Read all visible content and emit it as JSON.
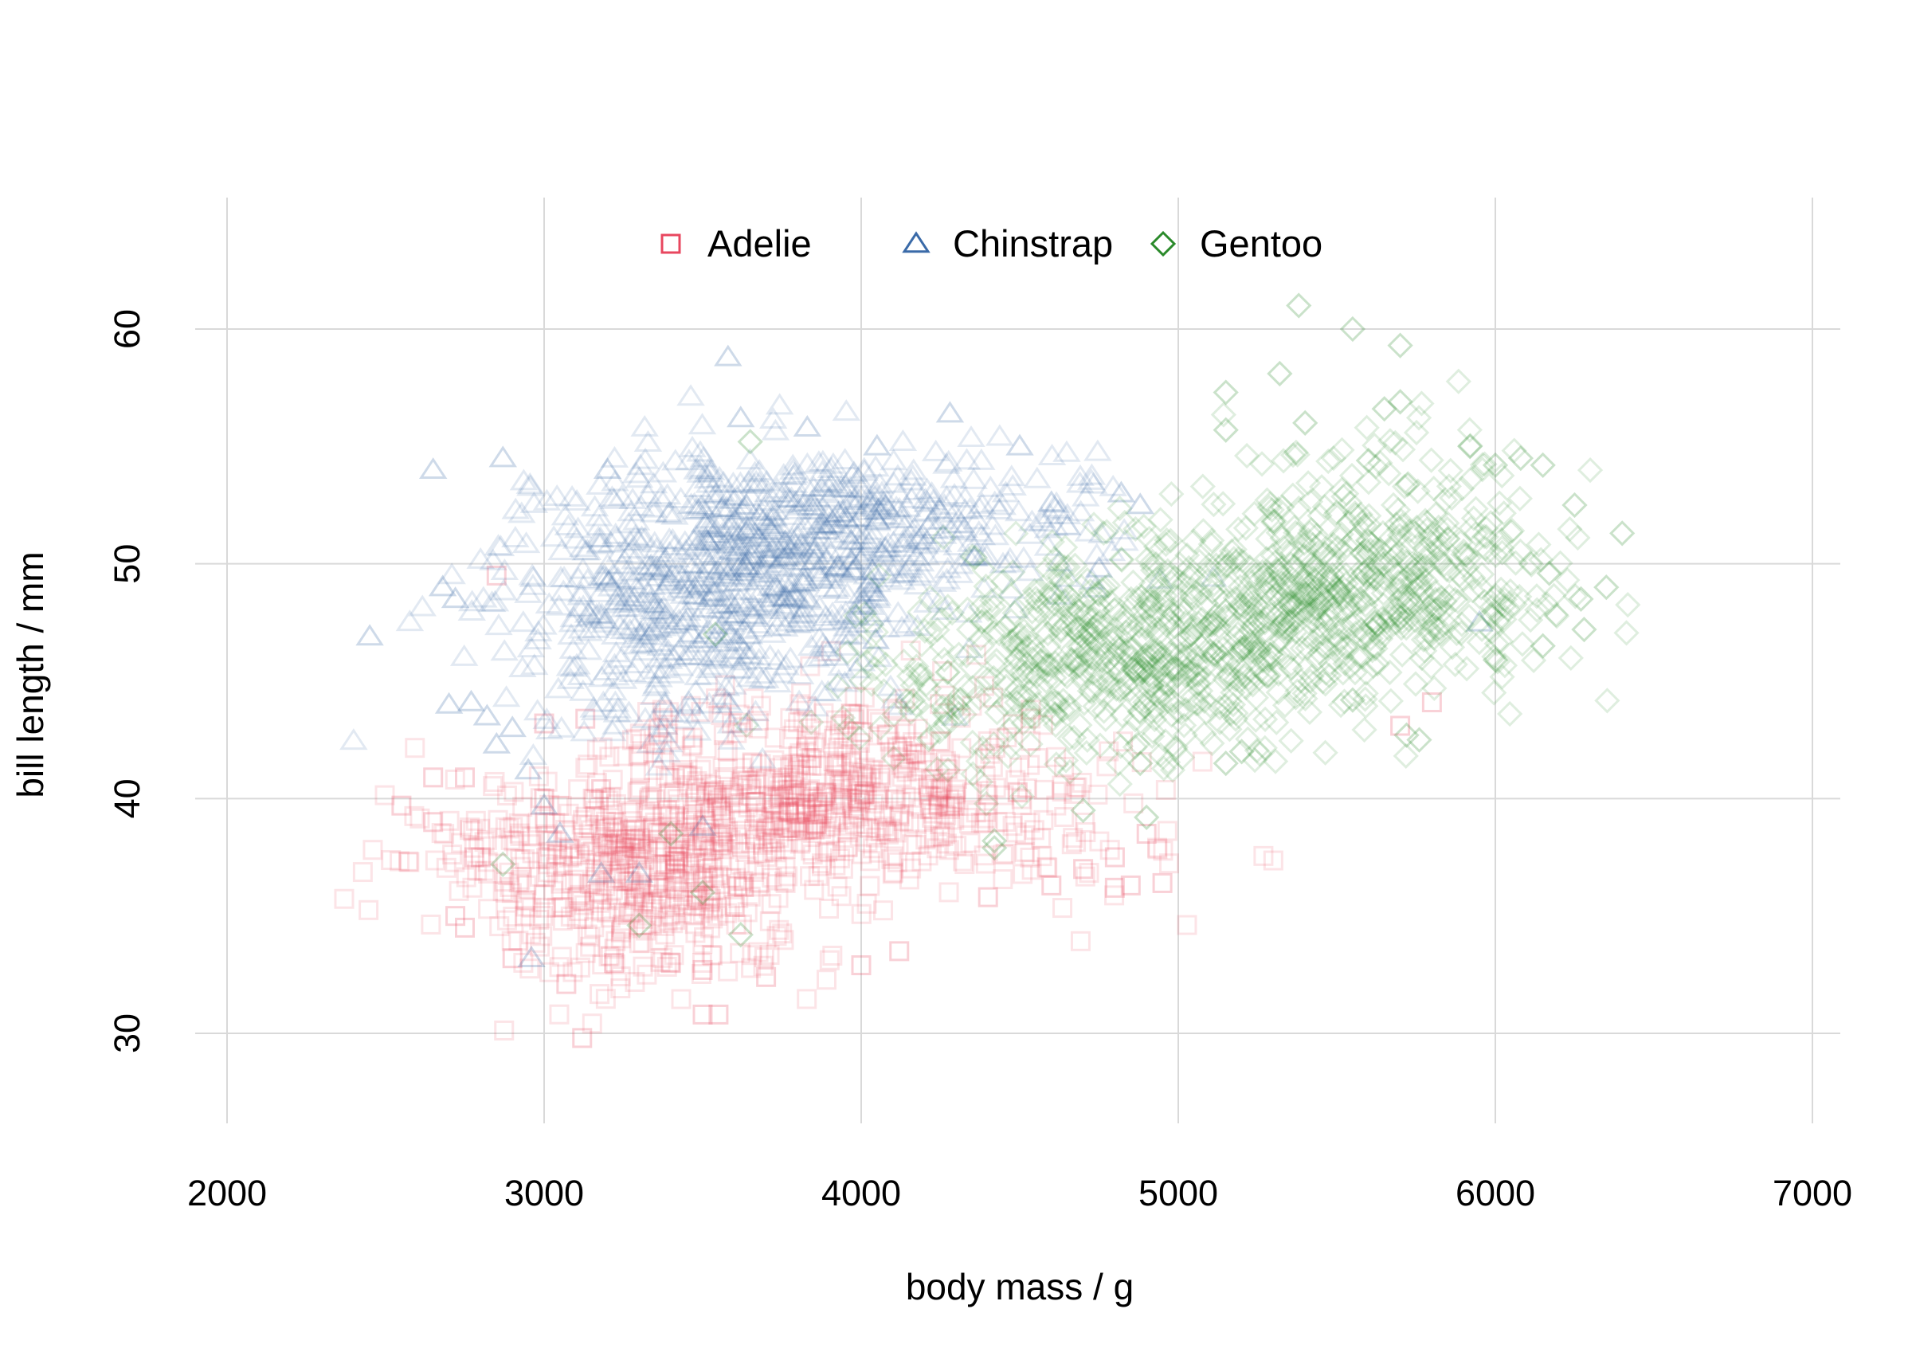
{
  "chart_data": {
    "type": "scatter",
    "title": "",
    "xlabel": "body mass / g",
    "ylabel": "bill length / mm",
    "xlim": [
      2000,
      7000
    ],
    "ylim": [
      26,
      64
    ],
    "xticks": [
      2000,
      3000,
      4000,
      5000,
      6000,
      7000
    ],
    "yticks": [
      30,
      40,
      50,
      60
    ],
    "grid": true,
    "legend_position": "top-center",
    "point_alpha": 0.15,
    "series": [
      {
        "name": "Adelie",
        "marker": "square",
        "color": "#e8475f",
        "centers": [
          [
            3300,
            37.5,
            1.0
          ],
          [
            3500,
            38.0,
            1.0
          ],
          [
            3800,
            39.5,
            0.95
          ],
          [
            4000,
            40.5,
            0.8
          ],
          [
            3200,
            36.0,
            0.75
          ],
          [
            3600,
            41.0,
            0.75
          ],
          [
            4300,
            40.0,
            0.6
          ],
          [
            2900,
            38.0,
            0.45
          ],
          [
            4600,
            38.5,
            0.35
          ],
          [
            3400,
            34.0,
            0.45
          ],
          [
            4100,
            42.5,
            0.4
          ]
        ],
        "spread": [
          240,
          1.7
        ],
        "points": [
          [
            2550,
            39.7
          ],
          [
            2650,
            40.9
          ],
          [
            2650,
            39.0
          ],
          [
            2750,
            40.9
          ],
          [
            2780,
            37.5
          ],
          [
            2800,
            37.5
          ],
          [
            2720,
            35.0
          ],
          [
            2750,
            34.5
          ],
          [
            2900,
            33.2
          ],
          [
            3000,
            40.0
          ],
          [
            3000,
            43.2
          ],
          [
            3070,
            32.1
          ],
          [
            3120,
            29.8
          ],
          [
            3500,
            30.8
          ],
          [
            3550,
            30.8
          ],
          [
            3700,
            32.4
          ],
          [
            4000,
            32.9
          ],
          [
            4120,
            33.5
          ],
          [
            3220,
            33.0
          ],
          [
            4400,
            35.8
          ],
          [
            4600,
            36.3
          ],
          [
            4800,
            36.2
          ],
          [
            4850,
            36.3
          ],
          [
            4950,
            36.4
          ],
          [
            4900,
            38.5
          ],
          [
            4700,
            37.0
          ],
          [
            4800,
            37.5
          ],
          [
            5700,
            43.1
          ],
          [
            5800,
            44.1
          ],
          [
            2850,
            49.5
          ],
          [
            3130,
            43.4
          ],
          [
            3180,
            40.4
          ],
          [
            3400,
            33.0
          ],
          [
            3500,
            32.7
          ]
        ]
      },
      {
        "name": "Chinstrap",
        "marker": "triangle",
        "color": "#3a6aa8",
        "centers": [
          [
            3550,
            49.8,
            1.0
          ],
          [
            3800,
            50.5,
            1.0
          ],
          [
            3300,
            47.5,
            0.85
          ],
          [
            4000,
            51.0,
            0.85
          ],
          [
            3600,
            52.5,
            0.75
          ],
          [
            4250,
            51.5,
            0.55
          ],
          [
            3400,
            45.0,
            0.55
          ],
          [
            4500,
            51.5,
            0.3
          ],
          [
            3100,
            50.5,
            0.45
          ],
          [
            3800,
            47.5,
            0.65
          ]
        ],
        "spread": [
          230,
          1.8
        ],
        "points": [
          [
            2450,
            46.9
          ],
          [
            2650,
            54.0
          ],
          [
            2680,
            49.0
          ],
          [
            2720,
            48.5
          ],
          [
            2700,
            44.0
          ],
          [
            2770,
            44.1
          ],
          [
            2820,
            43.5
          ],
          [
            2850,
            42.3
          ],
          [
            2870,
            54.5
          ],
          [
            2900,
            43.0
          ],
          [
            2950,
            41.2
          ],
          [
            2960,
            33.2
          ],
          [
            3580,
            58.8
          ],
          [
            3620,
            56.2
          ],
          [
            3830,
            55.8
          ],
          [
            4280,
            56.4
          ],
          [
            4050,
            55.0
          ],
          [
            4500,
            55.0
          ],
          [
            4820,
            53.0
          ],
          [
            4880,
            52.5
          ],
          [
            4600,
            52.6
          ],
          [
            4750,
            49.8
          ],
          [
            4650,
            51.6
          ],
          [
            5950,
            47.5
          ],
          [
            3300,
            36.8
          ],
          [
            3500,
            38.8
          ],
          [
            3180,
            36.8
          ],
          [
            3000,
            39.7
          ],
          [
            3050,
            38.5
          ],
          [
            3200,
            54.0
          ]
        ]
      },
      {
        "name": "Gentoo",
        "marker": "diamond",
        "color": "#2a8a2a",
        "centers": [
          [
            4600,
            46.0,
            1.0
          ],
          [
            4850,
            45.0,
            0.95
          ],
          [
            5100,
            47.0,
            1.0
          ],
          [
            5450,
            49.0,
            1.0
          ],
          [
            5700,
            50.0,
            0.95
          ],
          [
            5350,
            46.5,
            0.75
          ],
          [
            5000,
            48.5,
            0.75
          ],
          [
            5800,
            48.5,
            0.6
          ],
          [
            4400,
            45.0,
            0.55
          ],
          [
            5600,
            52.5,
            0.5
          ]
        ],
        "spread": [
          260,
          2.0
        ],
        "points": [
          [
            5380,
            61.0
          ],
          [
            5550,
            60.0
          ],
          [
            5700,
            59.3
          ],
          [
            5320,
            58.1
          ],
          [
            5150,
            57.3
          ],
          [
            5650,
            56.6
          ],
          [
            5700,
            56.9
          ],
          [
            5400,
            56.0
          ],
          [
            5150,
            55.7
          ],
          [
            5600,
            54.4
          ],
          [
            5920,
            55.0
          ],
          [
            6000,
            54.2
          ],
          [
            6080,
            54.5
          ],
          [
            6150,
            54.2
          ],
          [
            6250,
            52.5
          ],
          [
            6400,
            51.3
          ],
          [
            6350,
            49.0
          ],
          [
            6280,
            47.2
          ],
          [
            6270,
            48.5
          ],
          [
            6170,
            49.6
          ],
          [
            6150,
            46.5
          ],
          [
            6000,
            45.9
          ],
          [
            5550,
            44.2
          ],
          [
            5760,
            42.5
          ],
          [
            5720,
            42.7
          ],
          [
            5200,
            42.0
          ],
          [
            5150,
            41.5
          ],
          [
            4880,
            41.5
          ],
          [
            4900,
            39.2
          ],
          [
            4700,
            39.5
          ],
          [
            3650,
            55.2
          ],
          [
            3400,
            38.5
          ],
          [
            3300,
            34.6
          ],
          [
            3620,
            34.2
          ],
          [
            3500,
            36.0
          ],
          [
            2870,
            37.2
          ],
          [
            3540,
            47.0
          ],
          [
            4420,
            37.9
          ],
          [
            4420,
            38.2
          ]
        ]
      }
    ]
  },
  "colors": {
    "background": "#ffffff",
    "grid": "#d9d9d9",
    "text": "#000000"
  }
}
